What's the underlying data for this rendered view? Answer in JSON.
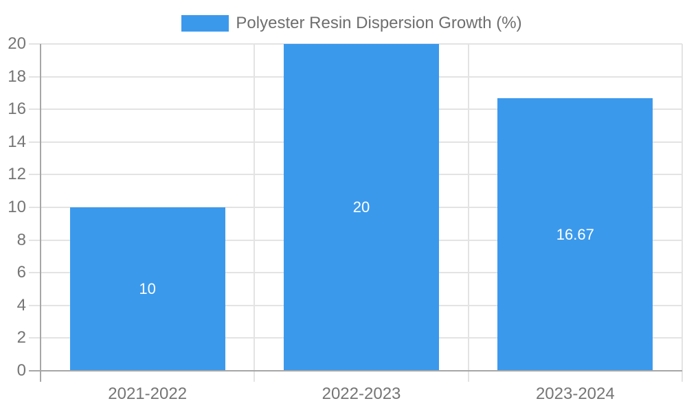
{
  "chart_data": {
    "type": "bar",
    "title": "Polyester Resin Dispersion Growth (%)",
    "legend": {
      "label": "Polyester Resin Dispersion Growth (%)",
      "position": "top"
    },
    "categories": [
      "2021-2022",
      "2022-2023",
      "2023-2024"
    ],
    "series": [
      {
        "name": "Polyester Resin Dispersion Growth (%)",
        "values": [
          10,
          20,
          16.67
        ],
        "value_labels": [
          "10",
          "20",
          "16.67"
        ]
      }
    ],
    "xlabel": "",
    "ylabel": "",
    "ylim": [
      0,
      20
    ],
    "ytick_step": 2,
    "ytick_labels": [
      "0",
      "2",
      "4",
      "6",
      "8",
      "10",
      "12",
      "14",
      "16",
      "18",
      "20"
    ],
    "grid": true,
    "colors": {
      "bar": "#3B99EC",
      "gridline": "#E3E3E3",
      "axis": "#A6A6A6",
      "tick_text": "#757575",
      "legend_text": "#6E6E6E",
      "bar_value_text": "#FFFFFF",
      "background": "#FFFFFF"
    }
  }
}
